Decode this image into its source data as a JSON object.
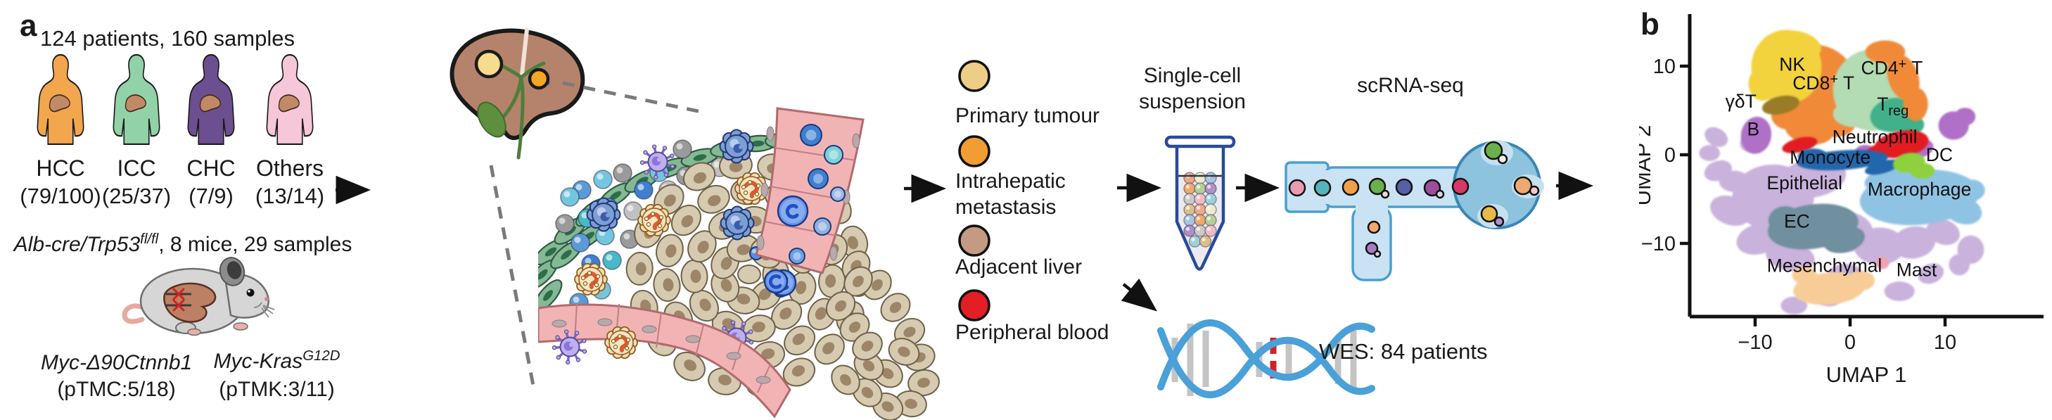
{
  "panels": {
    "a": "a",
    "b": "b"
  },
  "cohort": {
    "title": "124 patients, 160 samples",
    "groups": [
      {
        "name": "HCC",
        "count": "(79/100)",
        "color": "#f2a64e"
      },
      {
        "name": "ICC",
        "count": "(25/37)",
        "color": "#92d2a8"
      },
      {
        "name": "CHC",
        "count": "(7/9)",
        "color": "#6c4f90"
      },
      {
        "name": "Others",
        "count": "(13/14)",
        "color": "#f6c7d8"
      }
    ]
  },
  "mouse_model": {
    "strain_italic": "Alb-cre/Trp53",
    "strain_sup": "fl/fl",
    "strain_rest": ", 8 mice, 29 samples",
    "models": [
      {
        "gene": "Myc-Δ90Ctnnb1",
        "gene_sup": "",
        "count": "(pTMC:5/18)"
      },
      {
        "gene": "Myc-Kras",
        "gene_sup": "G12D",
        "count": "(pTMK:3/11)"
      }
    ]
  },
  "tissue_legend": {
    "items": [
      {
        "label": "Primary tumour",
        "color": "#eecd87"
      },
      {
        "label": "Intrahepatic metastasis",
        "color": "#f19d33"
      },
      {
        "label": "Adjacent liver",
        "color": "#c59a82"
      },
      {
        "label": "Peripheral blood",
        "color": "#e31e24"
      }
    ]
  },
  "workflow": {
    "suspension_label": "Single-cell suspension",
    "scrna_label": "scRNA-seq",
    "wes_label": "WES: 84 patients"
  },
  "icons": {
    "flow_arrow": "→"
  },
  "chart_data": {
    "type": "scatter",
    "title": "",
    "xlabel": "UMAP 1",
    "ylabel": "UMAP 2",
    "x_ticks": [
      -10,
      0,
      10
    ],
    "y_ticks": [
      10,
      0,
      -10
    ],
    "xlim": [
      -17,
      21
    ],
    "ylim": [
      -18,
      16
    ],
    "grid": false,
    "clusters": [
      {
        "name": "Epithelial",
        "color": "#c9b2dc",
        "label": {
          "pre": "Epithelial",
          "x": -4.8,
          "y": -3.9
        },
        "blobs": [
          [
            -8.1,
            -4.8,
            4.3,
            3.7,
            0
          ],
          [
            -3.9,
            -2.6,
            3.5,
            2.2,
            -10
          ],
          [
            -12.6,
            -6.3,
            2.2,
            1.6,
            20
          ],
          [
            -9.6,
            -9.5,
            2.4,
            1.7,
            -15
          ],
          [
            -6.3,
            -11.5,
            2.6,
            1.6,
            10
          ],
          [
            -0.7,
            -8.7,
            3.1,
            2.3,
            0
          ],
          [
            3.1,
            -10.3,
            2.7,
            2.1,
            0
          ],
          [
            6.7,
            -9.9,
            2.3,
            1.8,
            -10
          ],
          [
            9.8,
            -8.7,
            1.8,
            1.4,
            20
          ],
          [
            12.7,
            -10.7,
            1.4,
            1.6,
            0
          ],
          [
            -14.1,
            2.0,
            1.3,
            1.0,
            30
          ],
          [
            -14.8,
            0.2,
            1.1,
            0.9,
            0
          ],
          [
            -13.9,
            -1.8,
            1.5,
            1.1,
            -20
          ],
          [
            -12.2,
            -3.0,
            1.6,
            1.2,
            0
          ],
          [
            -5.9,
            -17.0,
            1.4,
            1.0,
            0
          ],
          [
            -2.2,
            -16.2,
            1.3,
            0.9,
            0
          ],
          [
            5.2,
            -15.4,
            1.6,
            1.1,
            0
          ],
          [
            8.5,
            -13.4,
            1.4,
            1.1,
            -20
          ],
          [
            -10.5,
            1.2,
            1.1,
            0.9,
            0
          ],
          [
            -0.5,
            -13.5,
            1.8,
            1.2,
            0
          ],
          [
            11.5,
            -12.4,
            1.1,
            1.2,
            0
          ]
        ]
      },
      {
        "name": "EC",
        "color": "#6f8f9f",
        "label": {
          "pre": "EC",
          "x": -5.6,
          "y": -8.2
        },
        "blobs": [
          [
            -3.9,
            -8.1,
            4.8,
            2.5,
            -8
          ],
          [
            -0.6,
            -9.6,
            2.2,
            1.4,
            -15
          ],
          [
            -6.8,
            -7.4,
            1.8,
            1.6,
            0
          ]
        ]
      },
      {
        "name": "Mesenchymal",
        "color": "#f8cc96",
        "label": {
          "pre": "Mesenchymal",
          "x": -2.7,
          "y": -13.2
        },
        "blobs": [
          [
            -2.2,
            -15.1,
            3.8,
            1.8,
            -5
          ],
          [
            1.2,
            -14.2,
            1.4,
            1.1,
            0
          ],
          [
            -4.8,
            -13.6,
            1.3,
            1.0,
            0
          ]
        ]
      },
      {
        "name": "Macrophage",
        "color": "#8fc3e4",
        "label": {
          "pre": "Macrophage",
          "x": 7.3,
          "y": -4.6
        },
        "blobs": [
          [
            7.3,
            -4.8,
            6.3,
            3.1,
            -5
          ],
          [
            11.9,
            -6.3,
            2.0,
            1.5,
            15
          ],
          [
            3.8,
            -2.9,
            2.3,
            1.3,
            -10
          ],
          [
            12.8,
            -4.0,
            1.4,
            1.2,
            0
          ]
        ]
      },
      {
        "name": "Mast",
        "color": "#f2a0b4",
        "label": {
          "pre": "Mast",
          "x": 7.0,
          "y": -13.7
        },
        "blobs": [
          [
            3.4,
            -12.2,
            0.7,
            0.7,
            0
          ]
        ]
      },
      {
        "name": "CD8+ T",
        "color": "#f08a38",
        "label": {
          "pre": "CD8",
          "sup": "+",
          "post": " T",
          "x": -2.8,
          "y": 7.4
        },
        "blobs": [
          [
            -3.7,
            7.1,
            4.6,
            5.3,
            0
          ],
          [
            -4.3,
            2.9,
            2.6,
            1.7,
            10
          ],
          [
            -1.5,
            3.4,
            2.0,
            1.4,
            0
          ],
          [
            -6.3,
            4.4,
            2.0,
            1.6,
            0
          ]
        ]
      },
      {
        "name": "NK",
        "color": "#f2d23c",
        "label": {
          "pre": "NK",
          "x": -6.1,
          "y": 9.5
        },
        "blobs": [
          [
            -6.7,
            9.9,
            3.7,
            4.2,
            0
          ],
          [
            -5.4,
            12.4,
            2.4,
            1.5,
            15
          ],
          [
            -9.2,
            8.0,
            1.5,
            1.9,
            0
          ]
        ]
      },
      {
        "name": "CD4+ T",
        "color": "#b4dcb4",
        "label": {
          "pre": "CD4",
          "sup": "+",
          "post": " T",
          "x": 4.4,
          "y": 9.1
        },
        "blobs": [
          [
            2.4,
            7.3,
            4.2,
            4.6,
            0
          ],
          [
            0.5,
            4.6,
            2.3,
            1.5,
            0
          ]
        ]
      },
      {
        "name": "Treg",
        "color": "#43b08a",
        "label": {
          "pre": "T",
          "sub": "reg",
          "x": 4.5,
          "y": 5.0
        },
        "blobs": [
          [
            4.6,
            4.5,
            2.5,
            1.9,
            -10
          ],
          [
            6.4,
            3.4,
            1.4,
            1.1,
            0
          ]
        ]
      },
      {
        "name": "CD8+ T",
        "color": "#f08a38",
        "blobs": [
          [
            5.6,
            8.7,
            1.6,
            2.7,
            -18
          ],
          [
            3.7,
            11.6,
            2.1,
            1.3,
            0
          ],
          [
            6.9,
            5.7,
            1.3,
            1.9,
            0
          ]
        ]
      },
      {
        "name": "γδT",
        "color": "#9a7b28",
        "label": {
          "pre": "γδT",
          "x": -11.5,
          "y": 5.3
        },
        "blobs": [
          [
            -7.3,
            5.6,
            2.0,
            1.0,
            -12
          ]
        ]
      },
      {
        "name": "B",
        "color": "#b06fc8",
        "label": {
          "pre": "B",
          "x": -10.2,
          "y": 2.2
        },
        "blobs": [
          [
            -9.9,
            2.2,
            1.6,
            2.1,
            10
          ],
          [
            10.9,
            3.3,
            1.6,
            1.6,
            0
          ],
          [
            12.1,
            4.3,
            1.1,
            1.0,
            0
          ],
          [
            7.4,
            0.7,
            1.4,
            1.0,
            -15
          ],
          [
            1.6,
            0.3,
            1.1,
            0.8,
            0
          ],
          [
            5.3,
            1.8,
            0.9,
            0.7,
            0
          ]
        ]
      },
      {
        "name": "Neutrophil",
        "color": "#e31e24",
        "label": {
          "pre": "Neutrophil",
          "x": 2.6,
          "y": 1.3
        },
        "blobs": [
          [
            -5.3,
            1.1,
            1.9,
            0.8,
            -14
          ],
          [
            5.4,
            1.2,
            2.9,
            1.5,
            -10
          ],
          [
            3.0,
            0.4,
            1.5,
            0.8,
            -20
          ]
        ]
      },
      {
        "name": "Monocyte",
        "color": "#2166ac",
        "label": {
          "pre": "Monocyte",
          "x": -2.1,
          "y": -1.0
        },
        "blobs": [
          [
            -0.8,
            -0.6,
            4.8,
            1.1,
            -4
          ],
          [
            3.4,
            -1.4,
            1.9,
            0.7,
            -15
          ],
          [
            -3.9,
            -0.2,
            1.6,
            0.9,
            0
          ]
        ]
      },
      {
        "name": "DC",
        "color": "#8ed03c",
        "label": {
          "pre": "DC",
          "x": 9.4,
          "y": -0.7
        },
        "blobs": [
          [
            6.2,
            -0.9,
            1.7,
            1.1,
            -10
          ],
          [
            7.6,
            -1.8,
            1.3,
            0.9,
            0
          ]
        ]
      }
    ]
  }
}
